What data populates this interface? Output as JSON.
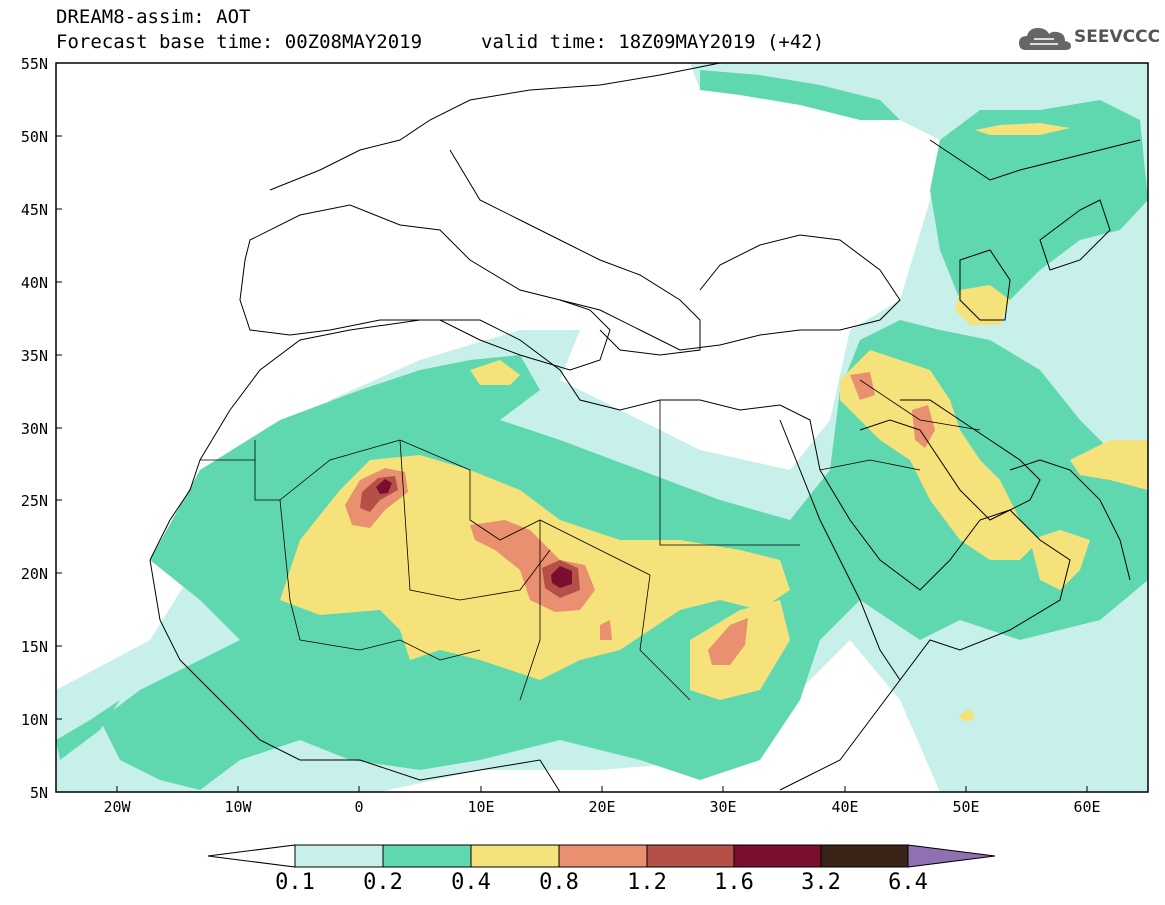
{
  "header": {
    "title": "DREAM8-assim: AOT",
    "base_time": "Forecast base time: 00Z08MAY2019",
    "valid_time": "valid time: 18Z09MAY2019 (+42)"
  },
  "logo": {
    "text": "SEEVCCC",
    "icon": "cloud-icon"
  },
  "map": {
    "lat_labels": [
      "55N",
      "50N",
      "45N",
      "40N",
      "35N",
      "30N",
      "25N",
      "20N",
      "15N",
      "10N",
      "5N"
    ],
    "lon_labels": [
      "20W",
      "10W",
      "0",
      "10E",
      "20E",
      "30E",
      "40E",
      "50E",
      "60E"
    ],
    "lat_range": [
      5,
      55
    ],
    "lon_range": [
      -25,
      65
    ]
  },
  "colorbar": {
    "levels": [
      "0.1",
      "0.2",
      "0.4",
      "0.8",
      "1.2",
      "1.6",
      "3.2",
      "6.4"
    ],
    "colors": [
      "#c8f0ea",
      "#5fd8b0",
      "#f5e27a",
      "#e89070",
      "#b55048",
      "#7a0e2c",
      "#3a2418",
      "#9070b0"
    ],
    "under_color": "#ffffff"
  }
}
